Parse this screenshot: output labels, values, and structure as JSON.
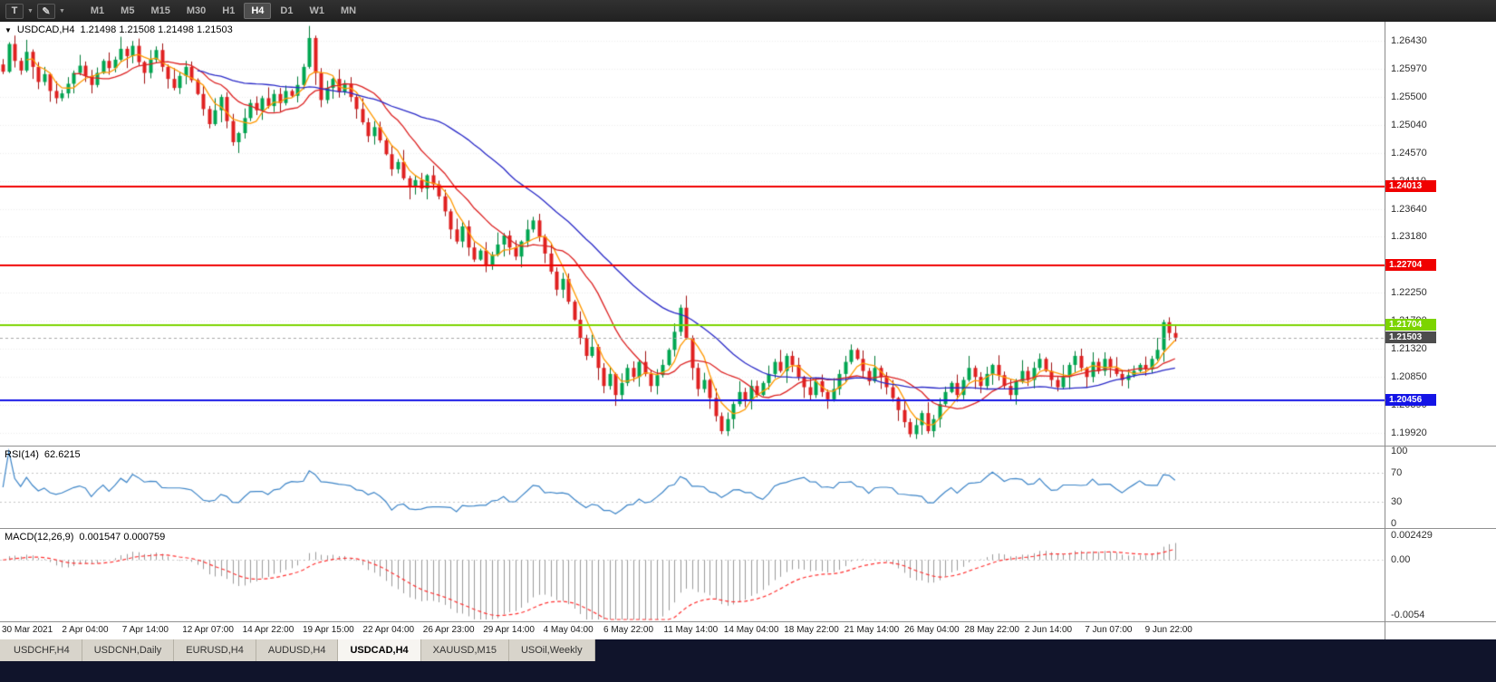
{
  "toolbar": {
    "icons": {
      "text_tool": "T",
      "pencil_tool": "✎"
    },
    "timeframes": [
      {
        "label": "M1",
        "active": false
      },
      {
        "label": "M5",
        "active": false
      },
      {
        "label": "M15",
        "active": false
      },
      {
        "label": "M30",
        "active": false
      },
      {
        "label": "H1",
        "active": false
      },
      {
        "label": "H4",
        "active": true
      },
      {
        "label": "D1",
        "active": false
      },
      {
        "label": "W1",
        "active": false
      },
      {
        "label": "MN",
        "active": false
      }
    ]
  },
  "chart": {
    "symbol": "USDCAD,H4",
    "quote_line": "1.21498 1.21508 1.21498 1.21503",
    "price_axis_labels": [
      "1.26430",
      "1.25970",
      "1.25500",
      "1.25040",
      "1.24570",
      "1.24110",
      "1.23640",
      "1.23180",
      "1.22710",
      "1.22250",
      "1.21790",
      "1.21320",
      "1.20850",
      "1.20390",
      "1.19920"
    ],
    "hlines": [
      {
        "price": 1.24013,
        "label": "1.24013",
        "color": "#f00000"
      },
      {
        "price": 1.22704,
        "label": "1.22704",
        "color": "#f00000"
      },
      {
        "price": 1.21704,
        "label": "1.21704",
        "color": "#7cd400"
      },
      {
        "price": 1.20456,
        "label": "1.20456",
        "color": "#1414e6"
      }
    ],
    "current_price": {
      "price": 1.21503,
      "label": "1.21503",
      "badge_color": "#4d4d4d"
    }
  },
  "chart_data": {
    "type": "candlestick",
    "title": "USDCAD H4 candlestick chart",
    "y_range": [
      1.1974,
      1.2672
    ],
    "closes": [
      1.2592,
      1.2638,
      1.261,
      1.2594,
      1.2625,
      1.26,
      1.2575,
      1.2588,
      1.256,
      1.2548,
      1.2556,
      1.2572,
      1.259,
      1.2602,
      1.2585,
      1.257,
      1.259,
      1.261,
      1.2598,
      1.2612,
      1.263,
      1.2618,
      1.2635,
      1.2608,
      1.259,
      1.2612,
      1.2628,
      1.26,
      1.258,
      1.2565,
      1.2585,
      1.26,
      1.2578,
      1.2555,
      1.253,
      1.2505,
      1.2528,
      1.255,
      1.251,
      1.2475,
      1.249,
      1.2515,
      1.254,
      1.2528,
      1.2548,
      1.2535,
      1.2555,
      1.254,
      1.256,
      1.2552,
      1.257,
      1.26,
      1.2648,
      1.259,
      1.2545,
      1.2565,
      1.258,
      1.2558,
      1.2572,
      1.255,
      1.253,
      1.2508,
      1.2485,
      1.25,
      1.2478,
      1.2455,
      1.243,
      1.2442,
      1.2415,
      1.24,
      1.2412,
      1.2398,
      1.242,
      1.2405,
      1.2385,
      1.236,
      1.233,
      1.231,
      1.2335,
      1.23,
      1.228,
      1.2295,
      1.227,
      1.2288,
      1.2305,
      1.232,
      1.23,
      1.2285,
      1.231,
      1.233,
      1.2345,
      1.2318,
      1.229,
      1.226,
      1.223,
      1.2248,
      1.221,
      1.218,
      1.215,
      1.212,
      1.2135,
      1.21,
      1.207,
      1.209,
      1.2055,
      1.2075,
      1.21,
      1.2085,
      1.211,
      1.209,
      1.207,
      1.2088,
      1.2105,
      1.213,
      1.216,
      1.22,
      1.215,
      1.21,
      1.2065,
      1.208,
      1.205,
      1.202,
      1.1995,
      1.2015,
      1.204,
      1.206,
      1.2045,
      1.207,
      1.2055,
      1.2075,
      1.209,
      1.211,
      1.2095,
      1.212,
      1.2105,
      1.2085,
      1.2068,
      1.2055,
      1.2078,
      1.206,
      1.2048,
      1.2065,
      1.209,
      1.211,
      1.213,
      1.2115,
      1.2095,
      1.2078,
      1.21,
      1.2085,
      1.2068,
      1.205,
      1.203,
      1.201,
      1.199,
      1.2005,
      1.2025,
      1.1995,
      1.2015,
      1.204,
      1.206,
      1.2075,
      1.2055,
      1.208,
      1.21,
      1.2085,
      1.207,
      1.209,
      1.2105,
      1.2088,
      1.207,
      1.2055,
      1.2078,
      1.2095,
      1.208,
      1.21,
      1.2115,
      1.2095,
      1.208,
      1.2068,
      1.2085,
      1.2105,
      1.212,
      1.21,
      1.2085,
      1.211,
      1.2095,
      1.2115,
      1.21,
      1.209,
      1.208,
      1.2088,
      1.2095,
      1.2105,
      1.2098,
      1.2115,
      1.213,
      1.2176,
      1.2158,
      1.21503
    ],
    "wick_pattern": [
      0.0009,
      0.0003,
      0.0014,
      0.0005,
      0.002,
      0.0004,
      0.0008,
      0.0012,
      0.0002,
      0.0016,
      0.0006,
      0.0011,
      0.0004,
      0.0018,
      0.0007,
      0.001
    ],
    "up_color": "#00a651",
    "down_color": "#e02020",
    "moving_averages": [
      {
        "period": 5,
        "color": "#ff9900"
      },
      {
        "period": 13,
        "color": "#dd2222"
      },
      {
        "period": 34,
        "color": "#2a2ac8"
      }
    ]
  },
  "rsi": {
    "name": "RSI(14)",
    "value": "62.6215",
    "period": 14,
    "levels": [
      70,
      30
    ],
    "axis_values": [
      100,
      70,
      30,
      0
    ],
    "axis_labels": [
      "100",
      "70",
      "30",
      "0"
    ],
    "color": "#3d85c8"
  },
  "macd": {
    "name": "MACD(12,26,9)",
    "values": "0.001547 0.000759",
    "fast": 12,
    "slow": 26,
    "signal": 9,
    "axis_values": [
      0.002429,
      0,
      -0.0054
    ],
    "axis_labels": [
      "0.002429",
      "0.00",
      "-0.0054"
    ],
    "scale_range": [
      -0.0058,
      0.0028
    ],
    "hist_color": "#9a9a9a",
    "signal_color": "#ff3333"
  },
  "time_axis": [
    "30 Mar 2021",
    "2 Apr 04:00",
    "7 Apr 14:00",
    "12 Apr 07:00",
    "14 Apr 22:00",
    "19 Apr 15:00",
    "22 Apr 04:00",
    "26 Apr 23:00",
    "29 Apr 14:00",
    "4 May 04:00",
    "6 May 22:00",
    "11 May 14:00",
    "14 May 04:00",
    "18 May 22:00",
    "21 May 14:00",
    "26 May 04:00",
    "28 May 22:00",
    "2 Jun 14:00",
    "7 Jun 07:00",
    "9 Jun 22:00"
  ],
  "tabs": [
    {
      "label": "USDCHF,H4",
      "active": false
    },
    {
      "label": "USDCNH,Daily",
      "active": false
    },
    {
      "label": "EURUSD,H4",
      "active": false
    },
    {
      "label": "AUDUSD,H4",
      "active": false
    },
    {
      "label": "USDCAD,H4",
      "active": true
    },
    {
      "label": "XAUUSD,M15",
      "active": false
    },
    {
      "label": "USOil,Weekly",
      "active": false
    }
  ]
}
